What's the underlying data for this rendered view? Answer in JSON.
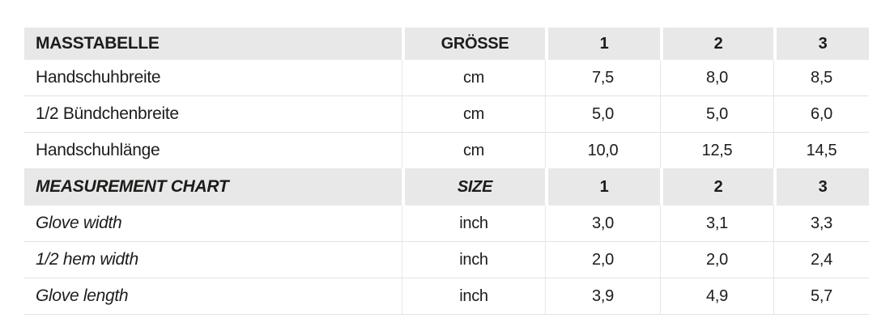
{
  "colors": {
    "header_bg": "#e9e8e8",
    "grid_line": "#e4e3e3",
    "text": "#1c1c1a"
  },
  "chart_data": {
    "type": "table",
    "sections": [
      {
        "header": {
          "label": "MASSTABELLE",
          "unit": "GRÖSSE",
          "sizes": [
            "1",
            "2",
            "3"
          ]
        },
        "rows": [
          {
            "label": "Handschuhbreite",
            "unit": "cm",
            "values": [
              "7,5",
              "8,0",
              "8,5"
            ]
          },
          {
            "label": "1/2 Bündchenbreite",
            "unit": "cm",
            "values": [
              "5,0",
              "5,0",
              "6,0"
            ]
          },
          {
            "label": "Handschuhlänge",
            "unit": "cm",
            "values": [
              "10,0",
              "12,5",
              "14,5"
            ]
          }
        ]
      },
      {
        "header": {
          "label": "MEASUREMENT CHART",
          "unit": "SIZE",
          "sizes": [
            "1",
            "2",
            "3"
          ]
        },
        "rows": [
          {
            "label": "Glove width",
            "unit": "inch",
            "values": [
              "3,0",
              "3,1",
              "3,3"
            ]
          },
          {
            "label": "1/2 hem width",
            "unit": "inch",
            "values": [
              "2,0",
              "2,0",
              "2,4"
            ]
          },
          {
            "label": "Glove length",
            "unit": "inch",
            "values": [
              "3,9",
              "4,9",
              "5,7"
            ]
          }
        ]
      }
    ]
  }
}
